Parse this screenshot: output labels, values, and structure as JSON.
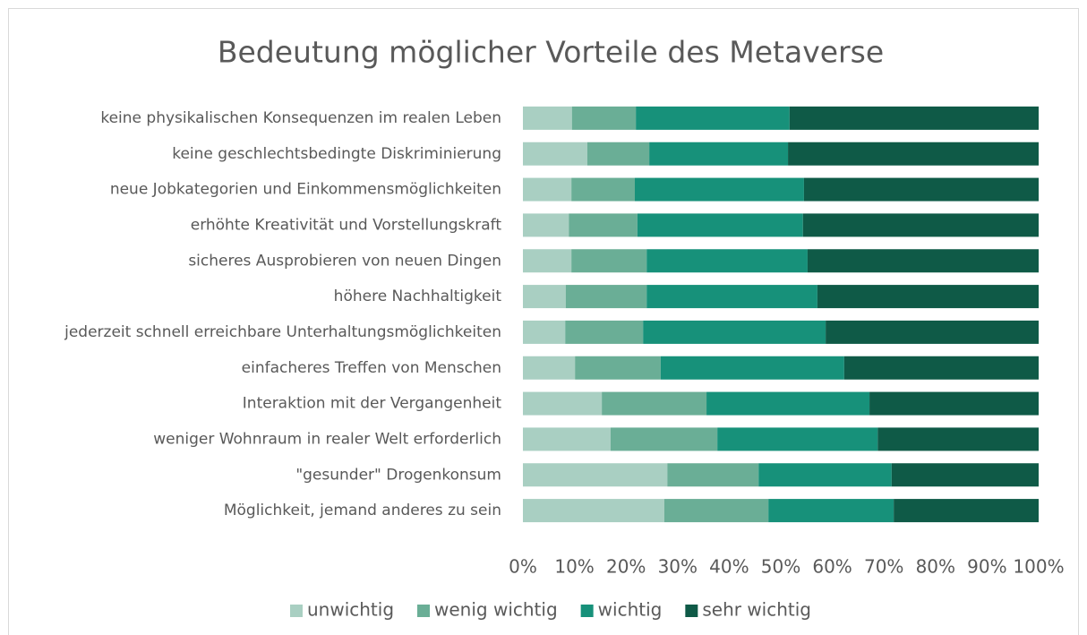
{
  "chart_data": {
    "type": "bar",
    "orientation": "horizontal",
    "stacked": true,
    "title": "Bedeutung möglicher Vorteile des Metaverse",
    "categories": [
      "keine physikalischen Konsequenzen im realen Leben",
      "keine geschlechtsbedingte Diskriminierung",
      "neue Jobkategorien und Einkommensmöglichkeiten",
      "erhöhte Kreativität und Vorstellungskraft",
      "sicheres Ausprobieren von neuen Dingen",
      "höhere Nachhaltigkeit",
      "jederzeit schnell erreichbare Unterhaltungsmöglichkeiten",
      "einfacheres Treffen von Menschen",
      "Interaktion mit der Vergangenheit",
      "weniger Wohnraum in realer Welt erforderlich",
      "\"gesunder\" Drogenkonsum",
      "Möglichkeit, jemand anderes zu sein"
    ],
    "series": [
      {
        "name": "unwichtig",
        "color": "#a9cfc2",
        "values": [
          9.5,
          12.5,
          9.4,
          8.9,
          9.4,
          8.3,
          8.2,
          10.1,
          15.3,
          17.0,
          28.0,
          27.4
        ]
      },
      {
        "name": "wenig wichtig",
        "color": "#6aae96",
        "values": [
          12.4,
          12.0,
          12.3,
          13.3,
          14.6,
          15.7,
          15.1,
          16.6,
          20.3,
          20.7,
          17.7,
          20.2
        ]
      },
      {
        "name": "wichtig",
        "color": "#17917a",
        "values": [
          29.8,
          26.9,
          32.8,
          32.1,
          31.2,
          33.1,
          35.4,
          35.6,
          31.6,
          31.1,
          25.8,
          24.3
        ]
      },
      {
        "name": "sehr wichtig",
        "color": "#0f5a47",
        "values": [
          48.3,
          48.6,
          45.5,
          45.7,
          44.8,
          42.9,
          41.3,
          37.7,
          32.8,
          31.2,
          28.5,
          28.1
        ]
      }
    ],
    "xlim": [
      0,
      100
    ],
    "xticks": [
      {
        "value": 0,
        "label": "0%"
      },
      {
        "value": 10,
        "label": "10%"
      },
      {
        "value": 20,
        "label": "20%"
      },
      {
        "value": 30,
        "label": "30%"
      },
      {
        "value": 40,
        "label": "40%"
      },
      {
        "value": 50,
        "label": "50%"
      },
      {
        "value": 60,
        "label": "60%"
      },
      {
        "value": 70,
        "label": "70%"
      },
      {
        "value": 80,
        "label": "80%"
      },
      {
        "value": 90,
        "label": "90%"
      },
      {
        "value": 100,
        "label": "100%"
      }
    ],
    "legend": "bottom"
  }
}
